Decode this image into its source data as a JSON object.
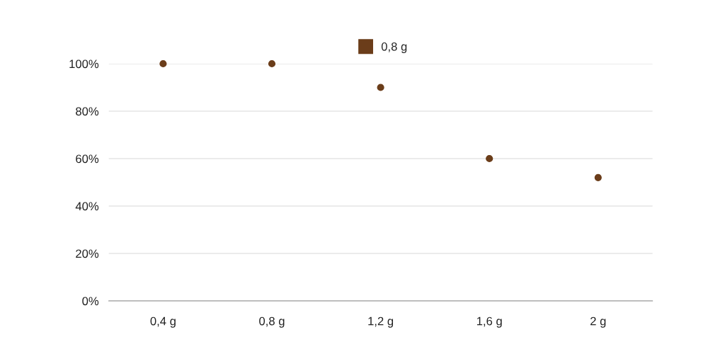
{
  "chart_data": {
    "type": "scatter",
    "categories": [
      "0,4 g",
      "0,8 g",
      "1,2 g",
      "1,6 g",
      "2 g"
    ],
    "series": [
      {
        "name": "0,8 g",
        "color": "#6b3d1a",
        "values": [
          100,
          100,
          90,
          60,
          52
        ]
      }
    ],
    "ylim": [
      0,
      100
    ],
    "yticks": [
      {
        "value": 0,
        "label": "0%"
      },
      {
        "value": 20,
        "label": "20%"
      },
      {
        "value": 40,
        "label": "40%"
      },
      {
        "value": 60,
        "label": "60%"
      },
      {
        "value": 80,
        "label": "80%"
      },
      {
        "value": 100,
        "label": "100%"
      }
    ],
    "grid": "y",
    "legend": "top",
    "marker": "circle"
  }
}
